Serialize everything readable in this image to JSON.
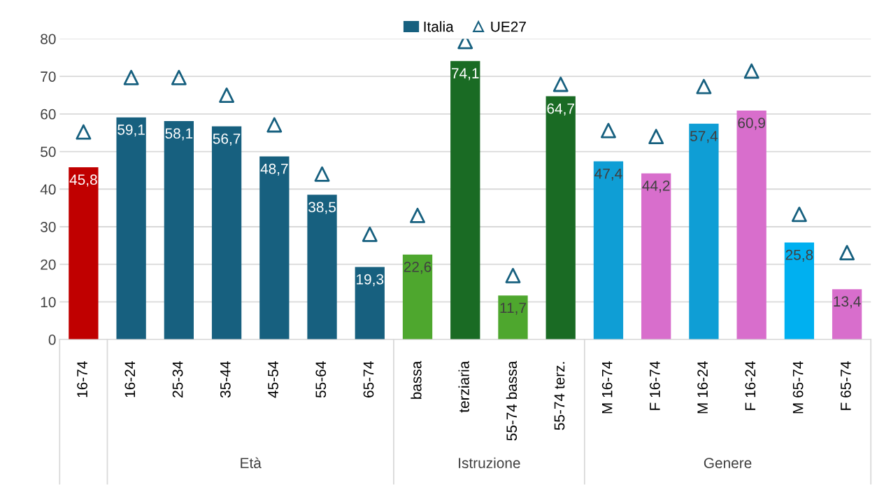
{
  "chart_data": {
    "type": "bar",
    "categories": [
      "16-74",
      "16-24",
      "25-34",
      "35-44",
      "45-54",
      "55-64",
      "65-74",
      "bassa",
      "terziaria",
      "55-74 bassa",
      "55-74 terz.",
      "M 16-74",
      "F 16-74",
      "M 16-24",
      "F 16-24",
      "M 65-74",
      "F 65-74"
    ],
    "series": [
      {
        "name": "Italia",
        "color": "#17607f",
        "colors": [
          "#c00000",
          "#17607f",
          "#17607f",
          "#17607f",
          "#17607f",
          "#17607f",
          "#17607f",
          "#4ea72e",
          "#1a6b24",
          "#4ea72e",
          "#1a6b24",
          "#0f9ed5",
          "#d86ecc",
          "#0f9ed5",
          "#d86ecc",
          "#00b0f0",
          "#d86ecc"
        ],
        "values": [
          45.8,
          59.1,
          58.1,
          56.7,
          48.7,
          38.5,
          19.3,
          22.6,
          74.1,
          11.7,
          64.7,
          47.4,
          44.2,
          57.4,
          60.9,
          25.8,
          13.4
        ],
        "value_labels": [
          "45,8",
          "59,1",
          "58,1",
          "56,7",
          "48,7",
          "38,5",
          "19,3",
          "22,6",
          "74,1",
          "11,7",
          "64,7",
          "47,4",
          "44,2",
          "57,4",
          "60,9",
          "25,8",
          "13,4"
        ]
      },
      {
        "name": "UE27",
        "type": "scatter",
        "marker": "triangle",
        "color": "#17607f",
        "values": [
          55.2,
          69.7,
          69.7,
          65,
          57.1,
          44,
          28,
          33,
          79.3,
          17,
          67.9,
          55.6,
          54,
          67.3,
          71.4,
          33.3,
          23.1
        ]
      }
    ],
    "annotations": [
      "Età",
      "Istruzione",
      "Genere"
    ],
    "ylim": [
      0,
      80
    ],
    "yticks": [
      0,
      10,
      20,
      30,
      40,
      50,
      60,
      70,
      80
    ],
    "grid": "y",
    "legend": "top"
  }
}
